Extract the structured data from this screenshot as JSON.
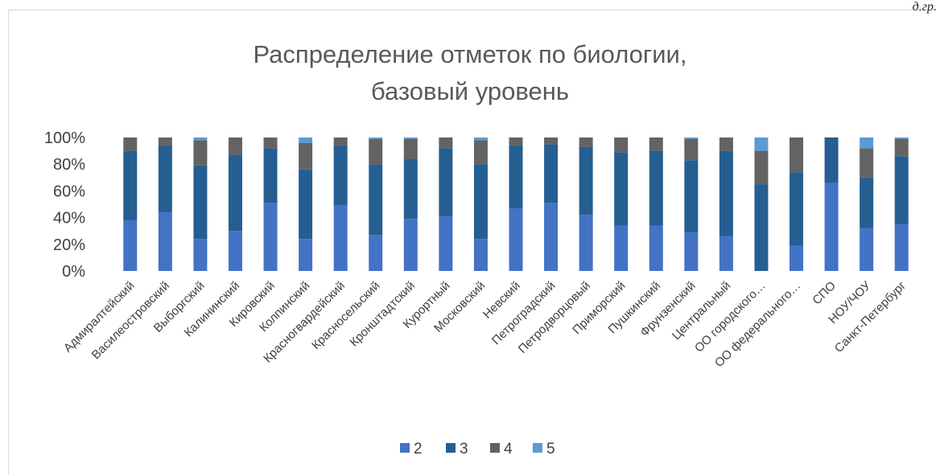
{
  "corner_text": "д.гр.",
  "chart_data": {
    "type": "bar",
    "stacked": true,
    "percent": true,
    "title": "Распределение отметок по биологии, базовый уровень",
    "title_lines": [
      "Распределение отметок по биологии,",
      "базовый уровень"
    ],
    "ylim": [
      0,
      100
    ],
    "yticks": [
      "0%",
      "20%",
      "40%",
      "60%",
      "80%",
      "100%"
    ],
    "grid": false,
    "legend_position": "bottom",
    "categories": [
      "Адмиралтейский",
      "Василеостровский",
      "Выборгский",
      "Калининский",
      "Кировский",
      "Колпинский",
      "Красногвардейский",
      "Красносельский",
      "Кронштадтский",
      "Курортный",
      "Московский",
      "Невский",
      "Петроградский",
      "Петродворцовый",
      "Приморский",
      "Пушкинский",
      "Фрунзенский",
      "Центральный",
      "ОО городского…",
      "ОО федерального…",
      "СПО",
      "НОУ/ЧОУ",
      "Санкт-Петербург"
    ],
    "series": [
      {
        "name": "2",
        "color": "#4472c4",
        "values": [
          38,
          44,
          24,
          30,
          51,
          24,
          49,
          27,
          39,
          41,
          24,
          47,
          51,
          42,
          34,
          34,
          29,
          26,
          0,
          19,
          66,
          32,
          35
        ]
      },
      {
        "name": "3",
        "color": "#255e91",
        "values": [
          52,
          50,
          55,
          57,
          41,
          52,
          45,
          53,
          45,
          51,
          56,
          47,
          44,
          51,
          55,
          56,
          54,
          64,
          65,
          55,
          34,
          38,
          51
        ]
      },
      {
        "name": "4",
        "color": "#636363",
        "values": [
          10,
          6,
          19,
          13,
          8,
          20,
          6,
          19,
          15,
          8,
          18,
          6,
          5,
          7,
          11,
          10,
          16,
          10,
          25,
          26,
          0,
          22,
          13
        ]
      },
      {
        "name": "5",
        "color": "#5b9bd5",
        "values": [
          0,
          0,
          2,
          0,
          0,
          4,
          0,
          1,
          1,
          0,
          2,
          0,
          0,
          0,
          0,
          0,
          1,
          0,
          10,
          0,
          0,
          8,
          1
        ]
      }
    ]
  }
}
